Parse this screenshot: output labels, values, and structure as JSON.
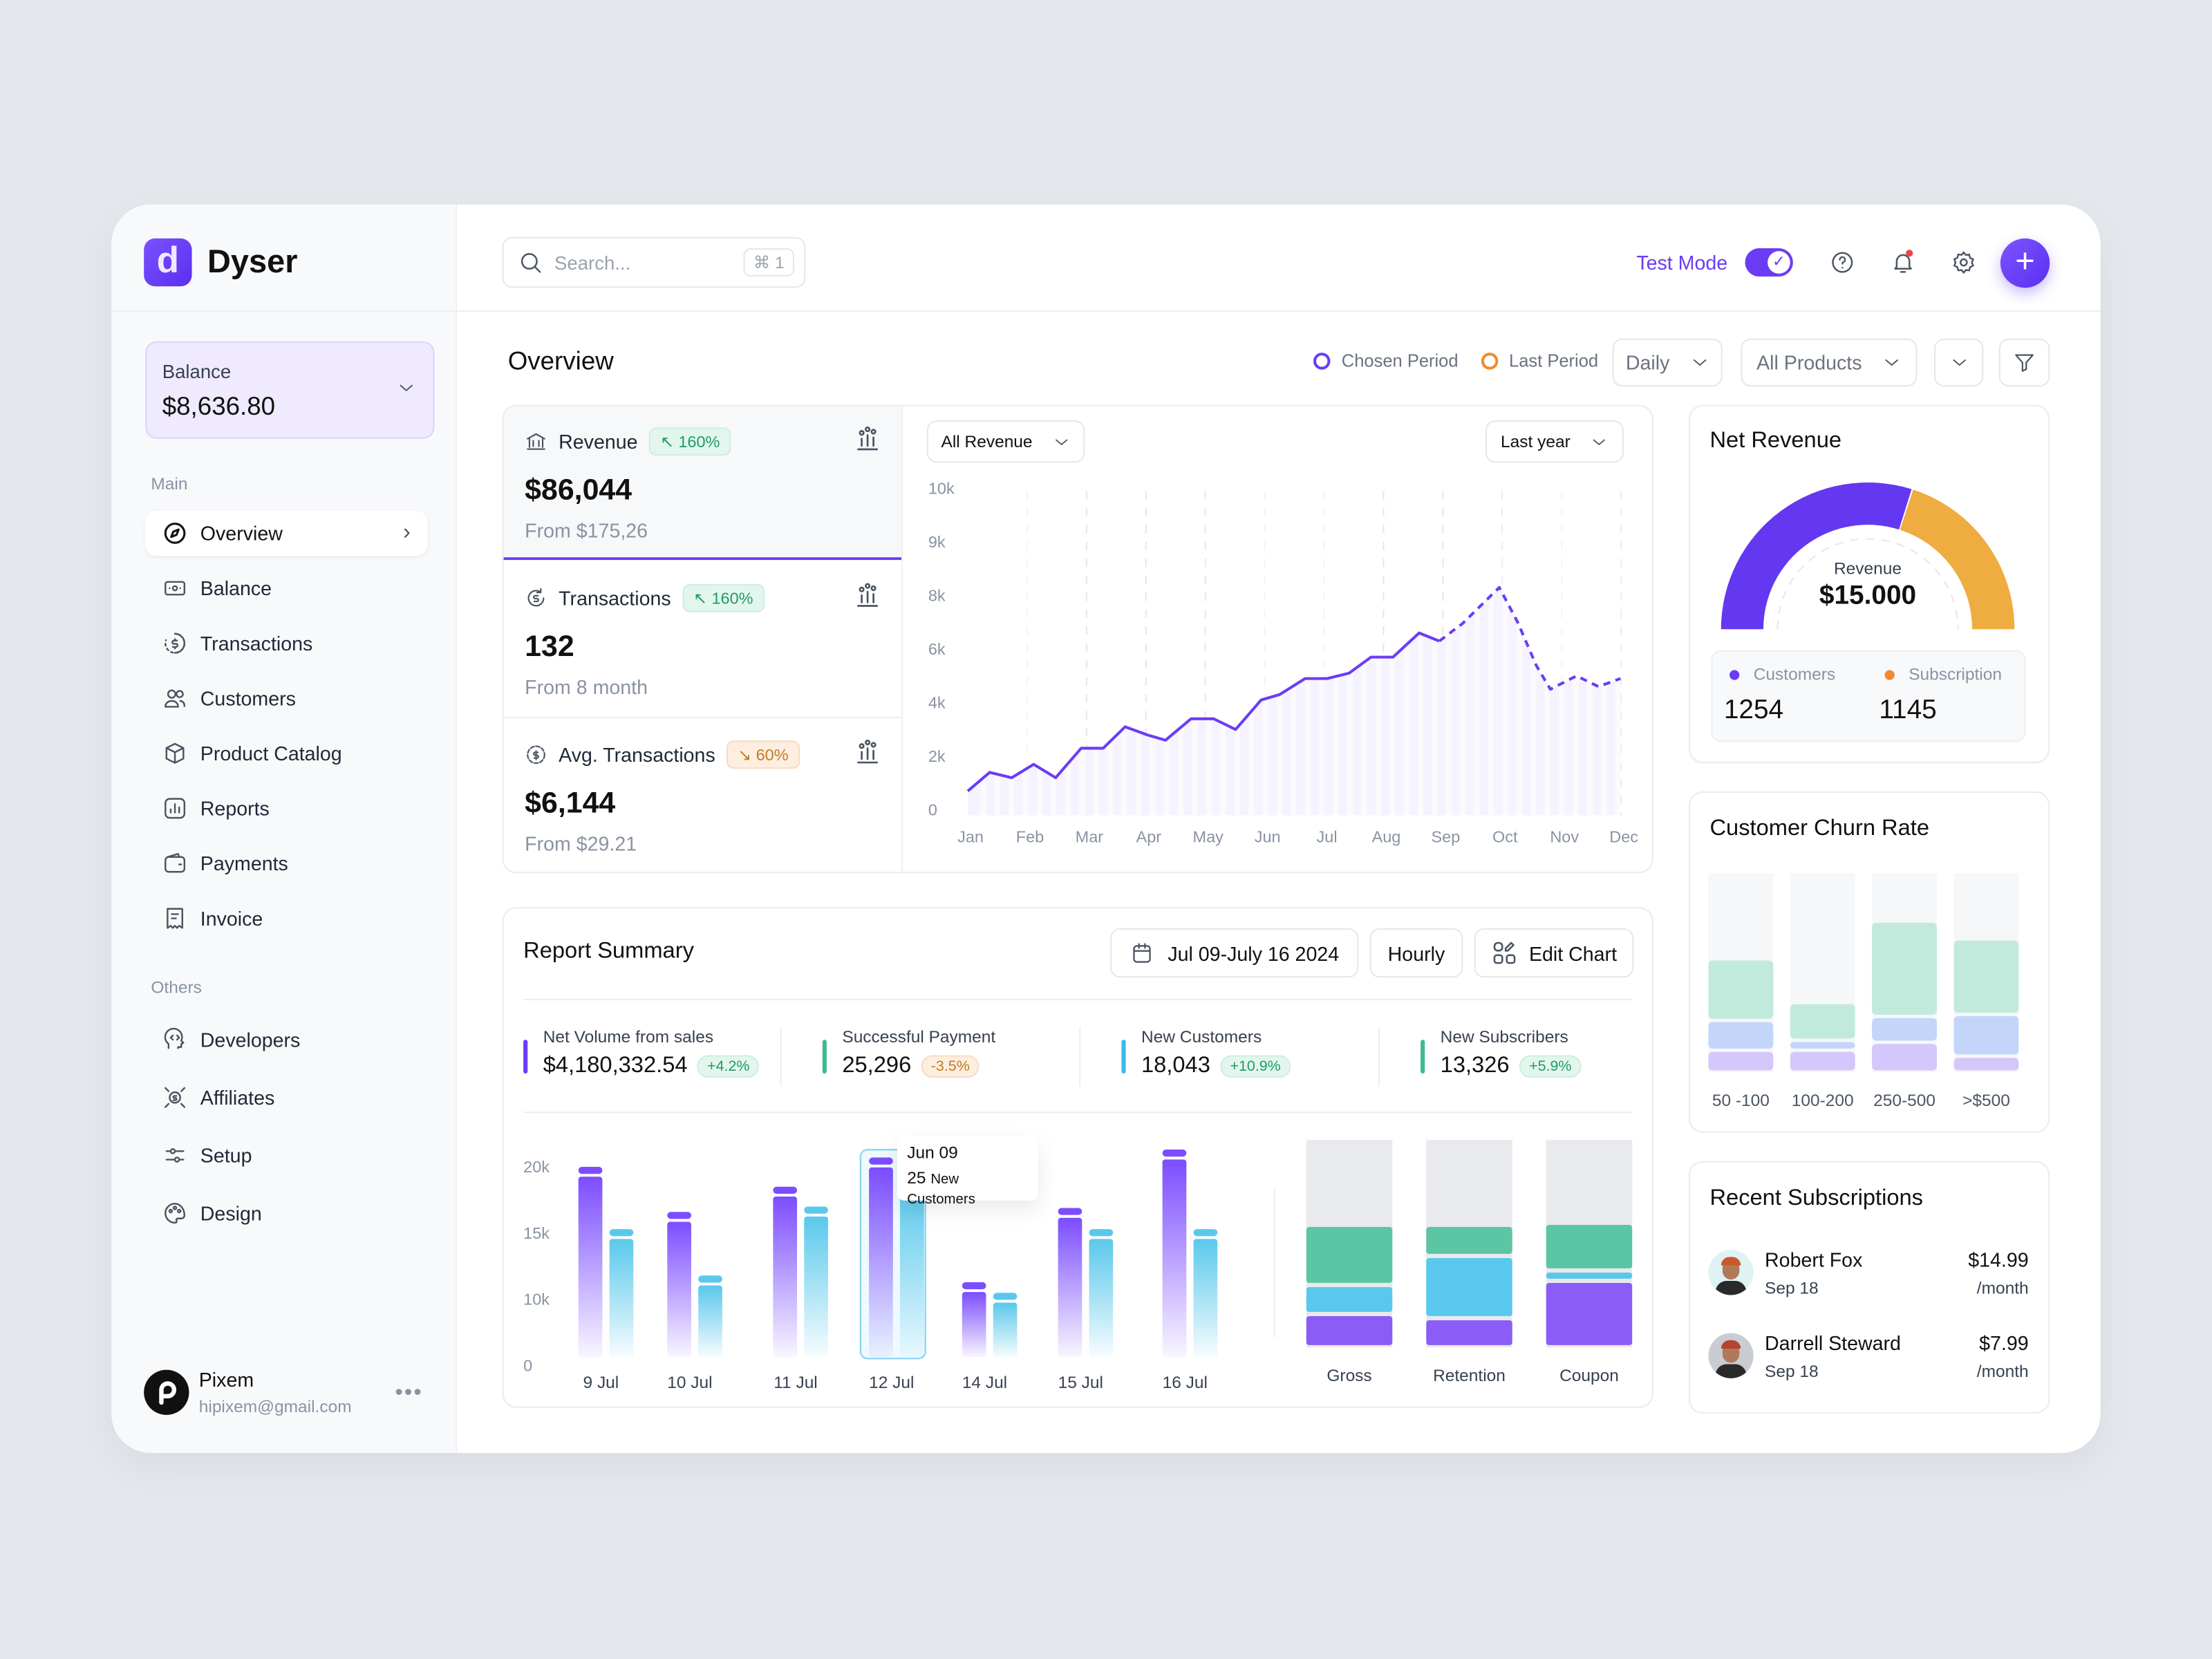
{
  "app": {
    "name": "Dyser",
    "logo_letter": "d",
    "accent": "#6b3cf5"
  },
  "sidebar": {
    "balance": {
      "label": "Balance",
      "value": "$8,636.80"
    },
    "main_label": "Main",
    "main_items": [
      {
        "label": "Overview",
        "icon": "compass",
        "active": true
      },
      {
        "label": "Balance",
        "icon": "banknote"
      },
      {
        "label": "Transactions",
        "icon": "dollar-circle"
      },
      {
        "label": "Customers",
        "icon": "users"
      },
      {
        "label": "Product Catalog",
        "icon": "box"
      },
      {
        "label": "Reports",
        "icon": "bar-chart"
      },
      {
        "label": "Payments",
        "icon": "wallet"
      },
      {
        "label": "Invoice",
        "icon": "receipt"
      }
    ],
    "others_label": "Others",
    "other_items": [
      {
        "label": "Developers",
        "icon": "code-head"
      },
      {
        "label": "Affiliates",
        "icon": "dollar-arrows"
      },
      {
        "label": "Setup",
        "icon": "sliders"
      },
      {
        "label": "Design",
        "icon": "palette"
      }
    ],
    "user": {
      "name": "Pixem",
      "email": "hipixem@gmail.com"
    }
  },
  "header": {
    "search_placeholder": "Search...",
    "shortcut": "⌘ 1",
    "test_mode_label": "Test Mode",
    "test_mode_on": true
  },
  "overview": {
    "title": "Overview",
    "legend": [
      {
        "label": "Chosen Period",
        "color": "#6b3cf5"
      },
      {
        "label": "Last Period",
        "color": "#f28a2e"
      }
    ],
    "period_select": "Daily",
    "product_select": "All Products"
  },
  "metrics": [
    {
      "label": "Revenue",
      "icon": "bank",
      "badge": "↖ 160%",
      "trend": "up",
      "value": "$86,044",
      "sub": "From $175,26",
      "active": true
    },
    {
      "label": "Transactions",
      "icon": "dollar-refresh",
      "badge": "↖ 160%",
      "trend": "up",
      "value": "132",
      "sub": "From 8 month"
    },
    {
      "label": "Avg. Transactions",
      "icon": "dollar-dashed",
      "badge": "↘ 60%",
      "trend": "down",
      "value": "$6,144",
      "sub": "From $29.21"
    }
  ],
  "revenue_chart": {
    "filter": "All Revenue",
    "range": "Last year"
  },
  "report": {
    "title": "Report Summary",
    "date_range": "Jul 09-July 16 2024",
    "interval": "Hourly",
    "edit_label": "Edit Chart",
    "stats": [
      {
        "label": "Net Volume from sales",
        "value": "$4,180,332.54",
        "change": "+4.2%",
        "trend": "up",
        "color": "#6b3cf5"
      },
      {
        "label": "Successful Payment",
        "value": "25,296",
        "change": "-3.5%",
        "trend": "down",
        "color": "#3dbb8f"
      },
      {
        "label": "New Customers",
        "value": "18,043",
        "change": "+10.9%",
        "trend": "up",
        "color": "#3cb8ea"
      },
      {
        "label": "New Subscribers",
        "value": "13,326",
        "change": "+5.9%",
        "trend": "up",
        "color": "#3dbb8f"
      }
    ],
    "tooltip": {
      "date": "Jun 09",
      "count": "25",
      "text": "New Customers"
    }
  },
  "net_revenue": {
    "title": "Net Revenue",
    "center_label": "Revenue",
    "center_value": "$15.000",
    "customers_label": "Customers",
    "customers_value": "1254",
    "customers_color": "#6b3cf5",
    "subscription_label": "Subscription",
    "subscription_value": "1145",
    "subscription_color": "#f28a2e"
  },
  "churn": {
    "title": "Customer Churn Rate"
  },
  "subscriptions": {
    "title": "Recent Subscriptions",
    "items": [
      {
        "name": "Robert Fox",
        "date": "Sep 18",
        "price": "$14.99",
        "period": "/month"
      },
      {
        "name": "Darrell Steward",
        "date": "Sep 18",
        "price": "$7.99",
        "period": "/month"
      }
    ]
  },
  "chart_data": [
    {
      "id": "revenue",
      "type": "line",
      "x_ticks": [
        "Jan",
        "Feb",
        "Mar",
        "Apr",
        "May",
        "Jun",
        "Jul",
        "Aug",
        "Sep",
        "Oct",
        "Nov",
        "Dec"
      ],
      "y_ticks": [
        "0",
        "2k",
        "4k",
        "6k",
        "8k",
        "9k",
        "10k"
      ],
      "y_tick_values": [
        0,
        2000,
        4000,
        6000,
        8000,
        9000,
        10000
      ],
      "grid": "vertical dashed",
      "series": [
        {
          "style": "solid",
          "color": "#6b3cf5",
          "points": [
            [
              0,
              800
            ],
            [
              0.37,
              1500
            ],
            [
              0.74,
              1300
            ],
            [
              1.11,
              1800
            ],
            [
              1.48,
              1300
            ],
            [
              1.91,
              2400
            ],
            [
              2.28,
              2400
            ],
            [
              2.65,
              3200
            ],
            [
              3.02,
              2900
            ],
            [
              3.33,
              2700
            ],
            [
              3.76,
              3500
            ],
            [
              4.14,
              3500
            ],
            [
              4.51,
              3100
            ],
            [
              4.94,
              4200
            ],
            [
              5.25,
              4400
            ],
            [
              5.68,
              5000
            ],
            [
              6.05,
              5000
            ],
            [
              6.42,
              5200
            ],
            [
              6.79,
              5800
            ],
            [
              7.16,
              5800
            ],
            [
              7.6,
              6700
            ],
            [
              7.94,
              6400
            ]
          ]
        },
        {
          "style": "dashed",
          "color": "#6b3cf5",
          "points": [
            [
              7.94,
              6400
            ],
            [
              8.33,
              7050
            ],
            [
              8.95,
              8200
            ],
            [
              9.26,
              7100
            ],
            [
              9.57,
              5500
            ],
            [
              9.81,
              4600
            ],
            [
              10.25,
              5100
            ],
            [
              10.62,
              4700
            ],
            [
              10.99,
              5000
            ]
          ]
        }
      ]
    },
    {
      "id": "report-bars",
      "type": "bar",
      "categories": [
        "9 Jul",
        "10 Jul",
        "11 Jul",
        "12 Jul",
        "14 Jul",
        "15 Jul",
        "16 Jul"
      ],
      "y_ticks": [
        "0",
        "10k",
        "15k",
        "20k"
      ],
      "y_tick_values": [
        0,
        10000,
        15000,
        20000
      ],
      "highlighted": "12 Jul",
      "series": [
        {
          "color": "#7c4dff",
          "values": [
            20200,
            16800,
            18700,
            20900,
            11500,
            17100,
            21500
          ]
        },
        {
          "color": "#5ac8ec",
          "values": [
            15500,
            12000,
            17200,
            19500,
            10700,
            15500,
            15500
          ]
        }
      ]
    },
    {
      "id": "report-stacked",
      "type": "bar",
      "stacked": true,
      "categories": [
        "Gross",
        "Retention",
        "Coupon"
      ],
      "series": [
        {
          "color": "#8b5cf6",
          "values": [
            16,
            14,
            32
          ]
        },
        {
          "color": "#5ac8ec",
          "values": [
            14,
            30,
            5
          ]
        },
        {
          "color": "#5cc5a4",
          "values": [
            29,
            15,
            23
          ]
        }
      ],
      "ylim": [
        0,
        100
      ]
    },
    {
      "id": "net-revenue-gauge",
      "type": "pie",
      "shape": "half-donut",
      "slices": [
        {
          "label": "Customers",
          "value": 60,
          "color": "#6438f0"
        },
        {
          "label": "Subscription",
          "value": 40,
          "color": "#efac40"
        }
      ]
    },
    {
      "id": "churn",
      "type": "bar",
      "stacked": true,
      "categories": [
        "50 -100",
        "100-200",
        "250-500",
        ">$500"
      ],
      "series": [
        {
          "color": "#d3c7fb",
          "values": [
            11,
            11,
            15,
            8
          ]
        },
        {
          "color": "#c3d6fa",
          "values": [
            15,
            5,
            13,
            21
          ]
        },
        {
          "color": "#c2eadc",
          "values": [
            31,
            19,
            48,
            38
          ]
        }
      ],
      "ylim": [
        0,
        100
      ]
    }
  ]
}
